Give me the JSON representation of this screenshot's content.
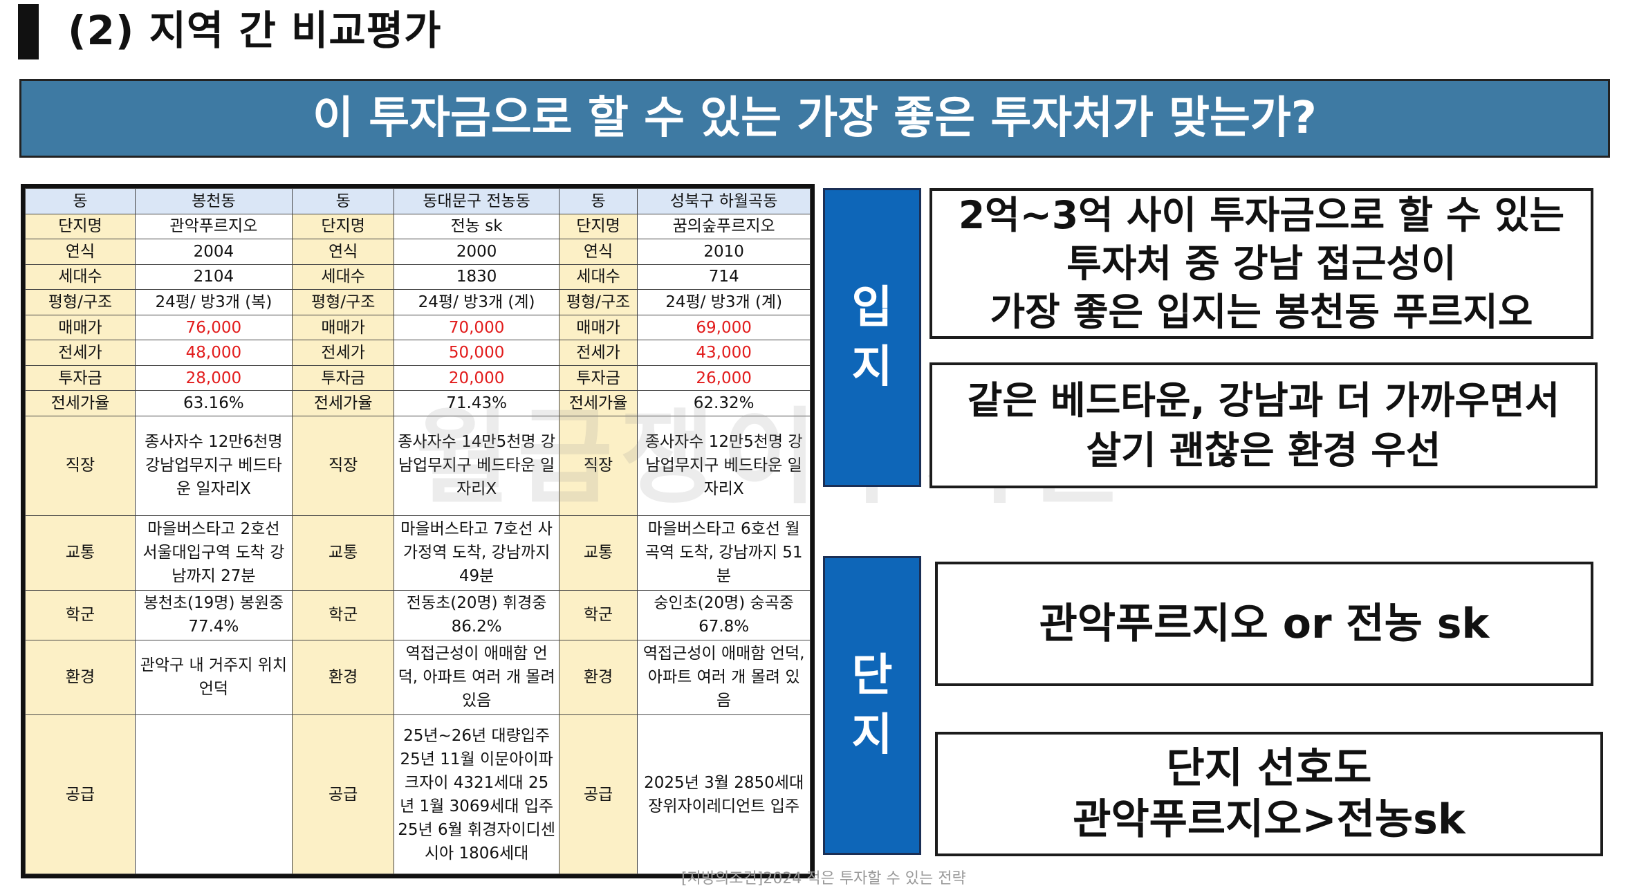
{
  "header": {
    "title": "(2) 지역 간 비교평가",
    "banner": "이 투자금으로 할 수 있는 가장 좋은 투자처가 맞는가?"
  },
  "table": {
    "header_row": [
      "동",
      "봉천동",
      "동",
      "동대문구 전농동",
      "동",
      "성북구 하월곡동"
    ],
    "rows": [
      {
        "label": "단지명",
        "values": [
          "관악푸르지오",
          "전농 sk",
          "꿈의숲푸르지오"
        ],
        "red": false
      },
      {
        "label": "연식",
        "values": [
          "2004",
          "2000",
          "2010"
        ],
        "red": false
      },
      {
        "label": "세대수",
        "values": [
          "2104",
          "1830",
          "714"
        ],
        "red": false
      },
      {
        "label": "평형/구조",
        "values": [
          "24평/ 방3개 (복)",
          "24평/ 방3개 (계)",
          "24평/ 방3개 (계)"
        ],
        "red": false
      },
      {
        "label": "매매가",
        "values": [
          "76,000",
          "70,000",
          "69,000"
        ],
        "red": true
      },
      {
        "label": "전세가",
        "values": [
          "48,000",
          "50,000",
          "43,000"
        ],
        "red": true
      },
      {
        "label": "투자금",
        "values": [
          "28,000",
          "20,000",
          "26,000"
        ],
        "red": true
      },
      {
        "label": "전세가율",
        "values": [
          "63.16%",
          "71.43%",
          "62.32%"
        ],
        "red": false
      },
      {
        "label": "직장",
        "values": [
          "종사자수 12만6천명 강남업무지구 베드타운 일자리X",
          "종사자수 14만5천명 강남업무지구 베드타운 일자리X",
          "종사자수 12만5천명 강남업무지구 베드타운 일자리X"
        ],
        "red": false
      },
      {
        "label": "교통",
        "values": [
          "마을버스타고 2호선 서울대입구역 도착 강남까지 27분",
          "마을버스타고 7호선 사가정역 도착, 강남까지 49분",
          "마을버스타고 6호선 월곡역 도착, 강남까지 51분"
        ],
        "red": false
      },
      {
        "label": "학군",
        "values": [
          "봉천초(19명) 봉원중 77.4%",
          "전동초(20명) 휘경중86.2%",
          "숭인초(20명) 숭곡중 67.8%"
        ],
        "red": false
      },
      {
        "label": "환경",
        "values": [
          "관악구 내 거주지 위치 언덕",
          "역접근성이 애매함 언덕, 아파트 여러 개 몰려있음",
          "역접근성이 애매함 언덕, 아파트 여러 개 몰려 있음"
        ],
        "red": false
      },
      {
        "label": "공급",
        "values": [
          "",
          "25년~26년 대량입주 25년 11월 이문아이파크자이 4321세대 25년 1월 3069세대 입주 25년 6월 휘경자이디센시아 1806세대",
          "2025년 3월 2850세대 장위자이레디언트 입주"
        ],
        "red": false
      }
    ]
  },
  "watermark": "월급쟁이부자들",
  "right": {
    "tag_location": [
      "입",
      "지"
    ],
    "tag_complex": [
      "단",
      "지"
    ],
    "box1": [
      "2억~3억 사이 투자금으로 할 수 있는",
      "투자처 중 강남 접근성이",
      "가장 좋은 입지는 봉천동 푸르지오"
    ],
    "box2": [
      "같은 베드타운, 강남과 더 가까우면서",
      "살기 괜찮은 환경 우선"
    ],
    "box3": [
      "관악푸르지오 or 전농 sk"
    ],
    "box4": [
      "단지 선호도",
      "관악푸르지오>전농sk"
    ]
  },
  "footer": "[지방의조건]2024 적은 투자할 수 있는 전략",
  "colors": {
    "banner": "#3e7aa3",
    "tag": "#0e66b8",
    "label_cell": "#fcf0c6",
    "header_cell": "#dae6f6",
    "price_text": "#e21b1b"
  }
}
